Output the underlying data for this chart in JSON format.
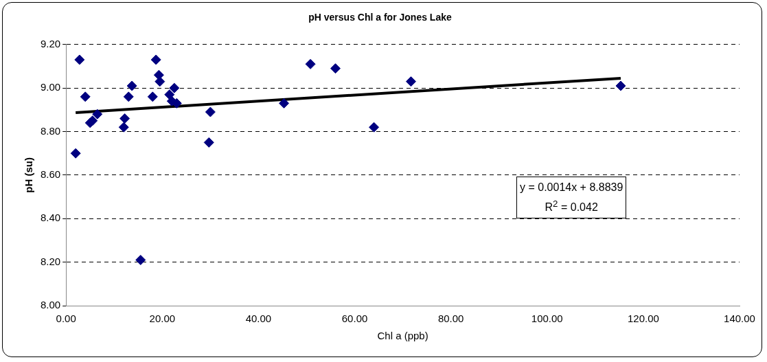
{
  "chart_data": {
    "type": "scatter",
    "title": "pH versus Chl a for Jones Lake",
    "xlabel": "Chl a (ppb)",
    "ylabel": "pH (su)",
    "xlim": [
      0,
      140
    ],
    "xticks": [
      {
        "value": 0,
        "label": "0.00"
      },
      {
        "value": 20,
        "label": "20.00"
      },
      {
        "value": 40,
        "label": "40.00"
      },
      {
        "value": 60,
        "label": "60.00"
      },
      {
        "value": 80,
        "label": "80.00"
      },
      {
        "value": 100,
        "label": "100.00"
      },
      {
        "value": 120,
        "label": "120.00"
      },
      {
        "value": 140,
        "label": "140.00"
      }
    ],
    "ylim": [
      8,
      9.2
    ],
    "yticks": [
      {
        "value": 8,
        "label": "8.00"
      },
      {
        "value": 8.2,
        "label": "8.20"
      },
      {
        "value": 8.4,
        "label": "8.40"
      },
      {
        "value": 8.6,
        "label": "8.60"
      },
      {
        "value": 8.8,
        "label": "8.80"
      },
      {
        "value": 9,
        "label": "9.00"
      },
      {
        "value": 9.2,
        "label": "9.20"
      }
    ],
    "grid": "y",
    "legend": false,
    "annotations": [
      "y = 0.0014x + 8.8839",
      "R$^{2}$ = 0.042"
    ],
    "series": [
      {
        "marker": "diamond",
        "color": "#000080",
        "x": [
          2,
          2.8,
          4,
          5,
          5.5,
          6.5,
          12,
          12.2,
          13,
          13.7,
          15.5,
          18,
          18.7,
          19.3,
          19.5,
          21.5,
          22,
          22.5,
          23,
          29.7,
          30,
          45.3,
          50.8,
          56,
          64,
          71.7,
          115.3
        ],
        "values": [
          8.7,
          9.13,
          8.96,
          8.84,
          8.85,
          8.88,
          8.82,
          8.86,
          8.96,
          9.01,
          8.21,
          8.96,
          9.13,
          9.06,
          9.03,
          8.97,
          8.94,
          9.0,
          8.93,
          8.75,
          8.89,
          8.93,
          9.11,
          9.09,
          8.82,
          9.03,
          9.01
        ]
      },
      {
        "type": "line",
        "marker": "none",
        "color": "#000000",
        "x": [
          2,
          115.3
        ],
        "values": [
          8.887,
          9.045
        ]
      }
    ]
  }
}
